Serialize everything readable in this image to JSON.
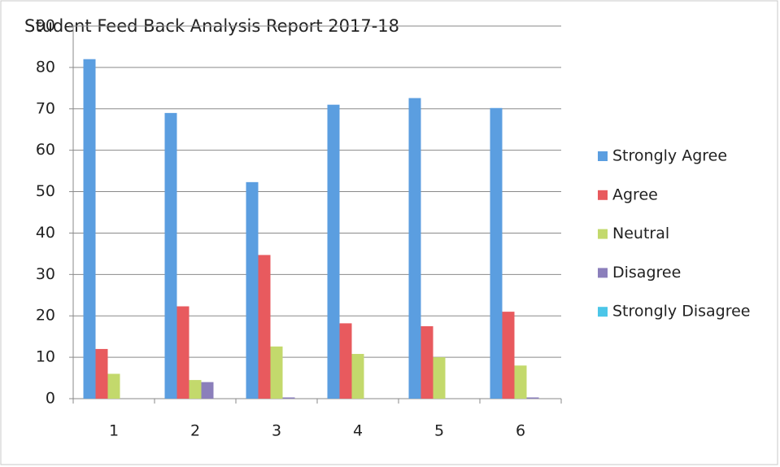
{
  "chart_data": {
    "type": "bar",
    "title": "Student Feed Back Analysis Report 2017-18",
    "categories": [
      "1",
      "2",
      "3",
      "4",
      "5",
      "6"
    ],
    "series": [
      {
        "name": "Strongly Agree",
        "color": "#5b9ee0",
        "values": [
          82,
          69,
          52.3,
          71,
          72.6,
          70.2
        ]
      },
      {
        "name": "Agree",
        "color": "#e85a5e",
        "values": [
          12,
          22.3,
          34.7,
          18.2,
          17.5,
          21
        ]
      },
      {
        "name": "Neutral",
        "color": "#c3d96c",
        "values": [
          6,
          4.5,
          12.6,
          10.8,
          10,
          8
        ]
      },
      {
        "name": "Disagree",
        "color": "#8b7fbb",
        "values": [
          0,
          4,
          0.3,
          0,
          0,
          0.3
        ]
      },
      {
        "name": "Strongly Disagree",
        "color": "#4cc6e8",
        "values": [
          0,
          0,
          0,
          0,
          0,
          0
        ]
      }
    ],
    "ylim": [
      0,
      90
    ],
    "yticks": [
      0,
      10,
      20,
      30,
      40,
      50,
      60,
      70,
      80,
      90
    ],
    "grid": true,
    "legend": "right"
  }
}
